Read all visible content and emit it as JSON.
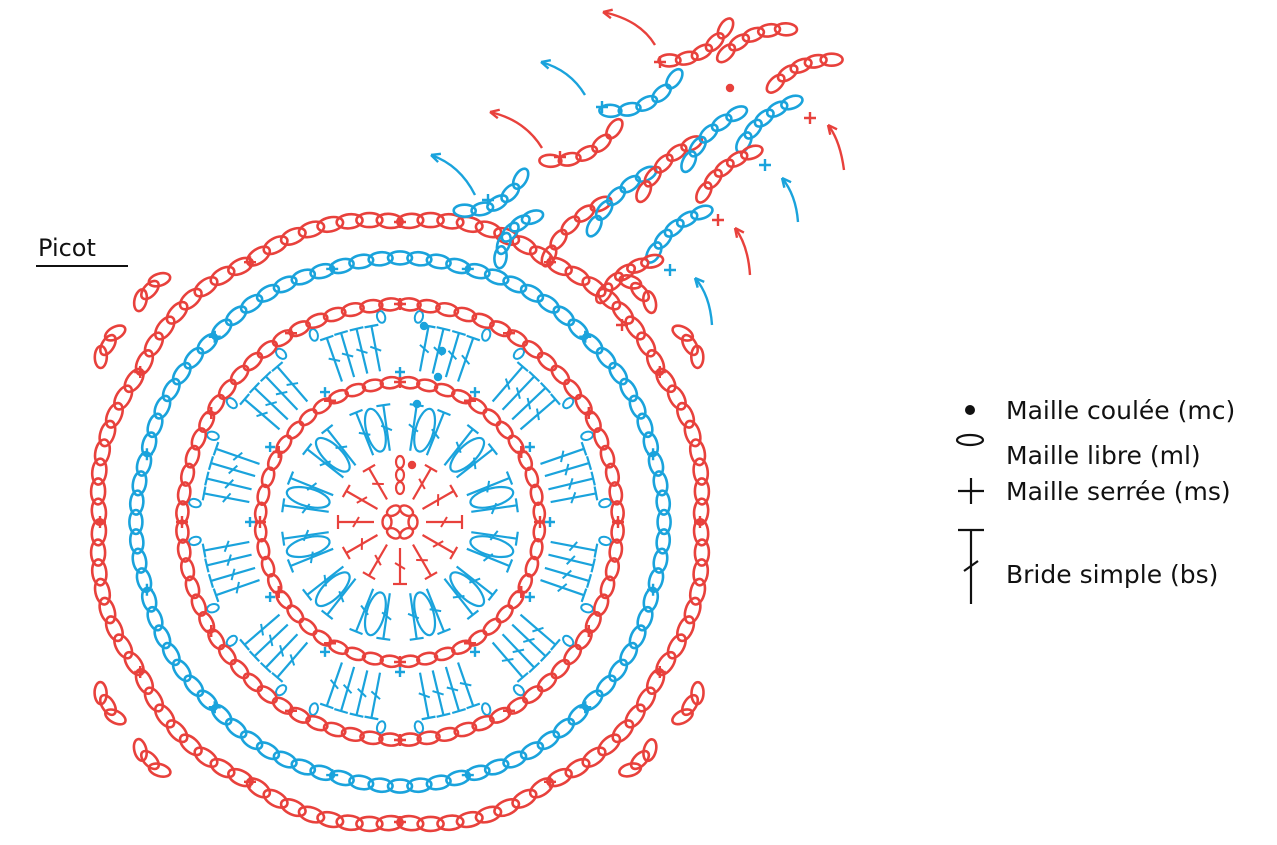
{
  "colors": {
    "red": "#e8413c",
    "blue": "#1aa3dc",
    "ink": "#111111"
  },
  "diagram": {
    "picot_label": "Picot"
  },
  "legend": {
    "items": [
      {
        "symbol": "dot-icon",
        "label": "Maille coulée (mc)"
      },
      {
        "symbol": "oval-icon",
        "label": "Maille libre (ml)"
      },
      {
        "symbol": "plus-icon",
        "label": "Maille serrée (ms)"
      },
      {
        "symbol": "double-crochet-icon",
        "label": "Bride simple (bs)"
      }
    ]
  }
}
